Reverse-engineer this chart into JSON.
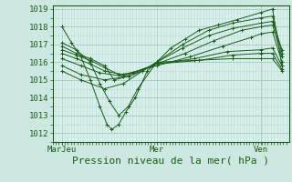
{
  "title": "Pression niveau de la mer( hPa )",
  "bg_color": "#cce8e0",
  "plot_bg_color": "#d8f0ec",
  "line_color": "#1a5c1a",
  "grid_major_color": "#a8c8c0",
  "grid_minor_color": "#c0dcd8",
  "ylim": [
    1011.5,
    1019.2
  ],
  "yticks": [
    1012,
    1013,
    1014,
    1015,
    1016,
    1017,
    1018,
    1019
  ],
  "xlim": [
    0.0,
    1.0
  ],
  "xtick_positions": [
    0.04,
    0.44,
    0.88
  ],
  "xtick_labels": [
    "MarJeu",
    "Mer",
    "Ven"
  ],
  "title_fontsize": 8,
  "tick_fontsize": 6.5,
  "series": [
    [
      0.04,
      1018.0,
      0.08,
      1017.1,
      0.12,
      1016.3,
      0.16,
      1015.0,
      0.2,
      1013.5,
      0.23,
      1012.5,
      0.25,
      1012.2,
      0.28,
      1012.5,
      0.31,
      1013.2,
      0.35,
      1014.0,
      0.4,
      1015.5,
      0.44,
      1016.0,
      0.5,
      1016.8,
      0.56,
      1017.3,
      0.62,
      1017.8,
      0.7,
      1018.1,
      0.78,
      1018.4,
      0.88,
      1018.8,
      0.93,
      1019.0,
      0.97,
      1015.8
    ],
    [
      0.04,
      1017.1,
      0.1,
      1016.7,
      0.16,
      1016.0,
      0.2,
      1014.8,
      0.24,
      1013.8,
      0.28,
      1013.0,
      0.32,
      1013.5,
      0.36,
      1014.5,
      0.44,
      1016.0,
      0.55,
      1017.0,
      0.66,
      1017.8,
      0.76,
      1018.2,
      0.88,
      1018.5,
      0.93,
      1018.6,
      0.97,
      1016.5
    ],
    [
      0.04,
      1016.9,
      0.1,
      1016.5,
      0.16,
      1016.2,
      0.22,
      1015.8,
      0.26,
      1015.0,
      0.32,
      1015.2,
      0.38,
      1015.5,
      0.44,
      1016.0,
      0.55,
      1016.8,
      0.66,
      1017.5,
      0.76,
      1017.9,
      0.88,
      1018.2,
      0.93,
      1018.3,
      0.97,
      1016.7
    ],
    [
      0.04,
      1016.7,
      0.1,
      1016.4,
      0.16,
      1016.1,
      0.22,
      1015.7,
      0.28,
      1015.3,
      0.34,
      1015.4,
      0.44,
      1015.9,
      0.56,
      1016.5,
      0.68,
      1017.2,
      0.8,
      1017.8,
      0.88,
      1018.0,
      0.93,
      1018.1,
      0.97,
      1016.3
    ],
    [
      0.04,
      1016.5,
      0.1,
      1016.2,
      0.16,
      1015.9,
      0.22,
      1015.5,
      0.3,
      1015.3,
      0.44,
      1015.8,
      0.58,
      1016.3,
      0.72,
      1016.9,
      0.84,
      1017.4,
      0.88,
      1017.6,
      0.93,
      1017.7,
      0.97,
      1016.0
    ],
    [
      0.04,
      1016.2,
      0.12,
      1015.8,
      0.2,
      1015.4,
      0.3,
      1015.2,
      0.44,
      1015.9,
      0.6,
      1016.2,
      0.74,
      1016.6,
      0.88,
      1016.7,
      0.93,
      1016.8,
      0.97,
      1015.8
    ],
    [
      0.04,
      1015.8,
      0.12,
      1015.3,
      0.22,
      1015.0,
      0.32,
      1015.2,
      0.44,
      1015.9,
      0.62,
      1016.1,
      0.76,
      1016.4,
      0.88,
      1016.5,
      0.93,
      1016.5,
      0.97,
      1015.6
    ],
    [
      0.04,
      1015.5,
      0.12,
      1015.0,
      0.22,
      1014.5,
      0.3,
      1014.8,
      0.38,
      1015.5,
      0.44,
      1016.0,
      0.6,
      1016.1,
      0.76,
      1016.2,
      0.88,
      1016.2,
      0.93,
      1016.2,
      0.97,
      1015.5
    ]
  ]
}
